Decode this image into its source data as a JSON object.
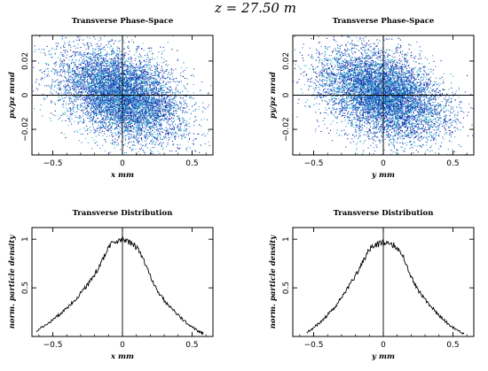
{
  "figure": {
    "suptitle": "z = 27.50 m"
  },
  "chart_data": [
    {
      "type": "scatter",
      "title": "Transverse Phase-Space",
      "xlabel": "x mm",
      "ylabel": "px/pz mrad",
      "xlim": [
        -0.65,
        0.65
      ],
      "ylim": [
        -0.035,
        0.035
      ],
      "xticks": [
        -0.5,
        0,
        0.5
      ],
      "xtick_labels": [
        "−0.5",
        "0",
        "0.5"
      ],
      "yticks": [
        -0.02,
        0,
        0.02
      ],
      "ytick_labels": [
        "−0.02",
        "0",
        "0.02"
      ],
      "grid": false,
      "zero_lines": true,
      "point_colors": [
        "#0b1a8a",
        "#2a3fd0",
        "#1f7fc9",
        "#27b3c9"
      ],
      "series": [
        {
          "distribution": "correlated gaussian cloud",
          "x_mean": 0,
          "x_std": 0.22,
          "y_mean": 0,
          "y_std": 0.0125,
          "slope": -0.022,
          "points": 7000
        }
      ]
    },
    {
      "type": "scatter",
      "title": "Transverse Phase-Space",
      "xlabel": "y mm",
      "ylabel": "py/pz mrad",
      "xlim": [
        -0.65,
        0.65
      ],
      "ylim": [
        -0.035,
        0.035
      ],
      "xticks": [
        -0.5,
        0,
        0.5
      ],
      "xtick_labels": [
        "−0.5",
        "0",
        "0.5"
      ],
      "yticks": [
        -0.02,
        0,
        0.02
      ],
      "ytick_labels": [
        "−0.02",
        "0",
        "0.02"
      ],
      "grid": false,
      "zero_lines": true,
      "point_colors": [
        "#0b1a8a",
        "#2a3fd0",
        "#1f7fc9",
        "#27b3c9"
      ],
      "series": [
        {
          "distribution": "correlated gaussian cloud",
          "x_mean": 0,
          "x_std": 0.22,
          "y_mean": 0,
          "y_std": 0.0125,
          "slope": -0.022,
          "points": 7000
        }
      ]
    },
    {
      "type": "line",
      "title": "Transverse Distribution",
      "xlabel": "x mm",
      "ylabel": "norm. particle density",
      "xlim": [
        -0.65,
        0.65
      ],
      "ylim": [
        0,
        1.12
      ],
      "xticks": [
        -0.5,
        0,
        0.5
      ],
      "xtick_labels": [
        "−0.5",
        "0",
        "0.5"
      ],
      "yticks": [
        0.5,
        1
      ],
      "ytick_labels": [
        "0.5",
        "1"
      ],
      "grid": false,
      "zero_lines": true,
      "series": [
        {
          "x": [
            -0.62,
            -0.55,
            -0.5,
            -0.45,
            -0.4,
            -0.35,
            -0.3,
            -0.25,
            -0.2,
            -0.15,
            -0.1,
            -0.05,
            0.0,
            0.05,
            0.1,
            0.15,
            0.2,
            0.25,
            0.3,
            0.35,
            0.4,
            0.45,
            0.5,
            0.55,
            0.58
          ],
          "values": [
            0.05,
            0.12,
            0.17,
            0.23,
            0.29,
            0.36,
            0.44,
            0.53,
            0.63,
            0.77,
            0.92,
            0.98,
            1.0,
            0.97,
            0.92,
            0.8,
            0.62,
            0.47,
            0.37,
            0.29,
            0.22,
            0.15,
            0.1,
            0.05,
            0.03
          ]
        }
      ]
    },
    {
      "type": "line",
      "title": "Transverse Distribution",
      "xlabel": "y mm",
      "ylabel": "norm. particle density",
      "xlim": [
        -0.65,
        0.65
      ],
      "ylim": [
        0,
        1.12
      ],
      "xticks": [
        -0.5,
        0,
        0.5
      ],
      "xtick_labels": [
        "−0.5",
        "0",
        "0.5"
      ],
      "yticks": [
        0.5,
        1
      ],
      "ytick_labels": [
        "0.5",
        "1"
      ],
      "grid": false,
      "zero_lines": true,
      "series": [
        {
          "x": [
            -0.55,
            -0.5,
            -0.45,
            -0.4,
            -0.35,
            -0.3,
            -0.25,
            -0.2,
            -0.15,
            -0.1,
            -0.05,
            0.0,
            0.05,
            0.1,
            0.15,
            0.2,
            0.25,
            0.3,
            0.35,
            0.4,
            0.45,
            0.5,
            0.55,
            0.58
          ],
          "values": [
            0.04,
            0.09,
            0.15,
            0.22,
            0.3,
            0.4,
            0.51,
            0.62,
            0.76,
            0.89,
            0.94,
            0.97,
            0.96,
            0.92,
            0.8,
            0.62,
            0.48,
            0.38,
            0.3,
            0.22,
            0.15,
            0.09,
            0.05,
            0.03
          ]
        }
      ]
    }
  ]
}
